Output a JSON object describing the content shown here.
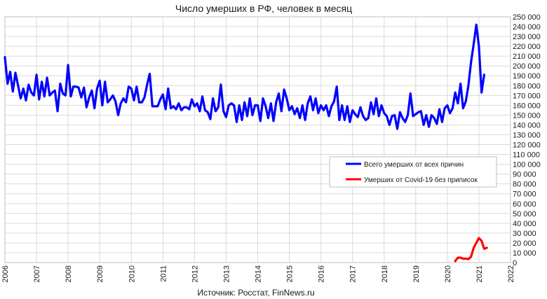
{
  "chart_data": {
    "type": "line",
    "title": "Число умерших в РФ, человек в месяц",
    "source": "Источник: Росстат, FinNews.ru",
    "x_ticks": [
      "2006",
      "2007",
      "2008",
      "2009",
      "2010",
      "2011",
      "2012",
      "2013",
      "2014",
      "2015",
      "2016",
      "2017",
      "2018",
      "2019",
      "2020",
      "2021",
      "2022"
    ],
    "y_ticks": [
      "0",
      "10 000",
      "20 000",
      "30 000",
      "40 000",
      "50 000",
      "60 000",
      "70 000",
      "80 000",
      "90 000",
      "100 000",
      "110 000",
      "120 000",
      "130 000",
      "140 000",
      "150 000",
      "160 000",
      "170 000",
      "180 000",
      "190 000",
      "200 000",
      "210 000",
      "220 000",
      "230 000",
      "240 000",
      "250 000"
    ],
    "ylim": [
      0,
      250000
    ],
    "xlim": [
      2006,
      2022
    ],
    "y_axis_position": "right",
    "grid": true,
    "legend_position": "center-right",
    "series": [
      {
        "name": "Всего умерших от всех причин",
        "color": "#0000ff",
        "start": "2006-01",
        "values": [
          209000,
          182000,
          194000,
          174000,
          193000,
          180000,
          167000,
          177000,
          165000,
          181000,
          173000,
          170000,
          191000,
          166000,
          184000,
          169000,
          188000,
          170000,
          173000,
          175000,
          154000,
          182000,
          172000,
          170000,
          201000,
          169000,
          179000,
          179000,
          178000,
          168000,
          178000,
          158000,
          168000,
          175000,
          157000,
          177000,
          185000,
          160000,
          184000,
          163000,
          166000,
          170000,
          164000,
          150000,
          162000,
          167000,
          163000,
          179000,
          177000,
          165000,
          179000,
          163000,
          163000,
          168000,
          181000,
          192000,
          159000,
          159000,
          159000,
          166000,
          171000,
          156000,
          177000,
          157000,
          159000,
          156000,
          162000,
          155000,
          158000,
          158000,
          156000,
          166000,
          159000,
          162000,
          154000,
          169000,
          155000,
          153000,
          146000,
          167000,
          154000,
          158000,
          181000,
          154000,
          148000,
          160000,
          162000,
          160000,
          143000,
          160000,
          145000,
          163000,
          149000,
          167000,
          150000,
          160000,
          160000,
          144000,
          167000,
          159000,
          147000,
          162000,
          144000,
          163000,
          172000,
          154000,
          176000,
          167000,
          155000,
          159000,
          151000,
          157000,
          147000,
          160000,
          145000,
          162000,
          169000,
          155000,
          167000,
          152000,
          160000,
          155000,
          160000,
          149000,
          159000,
          164000,
          179000,
          145000,
          160000,
          145000,
          159000,
          143000,
          155000,
          151000,
          148000,
          158000,
          149000,
          145000,
          147000,
          163000,
          151000,
          167000,
          149000,
          160000,
          152000,
          149000,
          140000,
          149000,
          150000,
          136000,
          153000,
          147000,
          143000,
          150000,
          172000,
          149000,
          151000,
          153000,
          154000,
          140000,
          150000,
          138000,
          150000,
          147000,
          141000,
          156000,
          143000,
          157000,
          160000,
          152000,
          157000,
          173000,
          162000,
          182000,
          157000,
          164000,
          180000,
          204000,
          222000,
          242000,
          220000,
          173000,
          191000
        ]
      },
      {
        "name": "Умерших  от Covid-19 без приписок",
        "color": "#ff0000",
        "start": "2020-04",
        "values": [
          1500,
          5000,
          5000,
          4000,
          4000,
          3500,
          6000,
          15000,
          20000,
          25000,
          22000,
          14000,
          15000
        ]
      }
    ]
  }
}
